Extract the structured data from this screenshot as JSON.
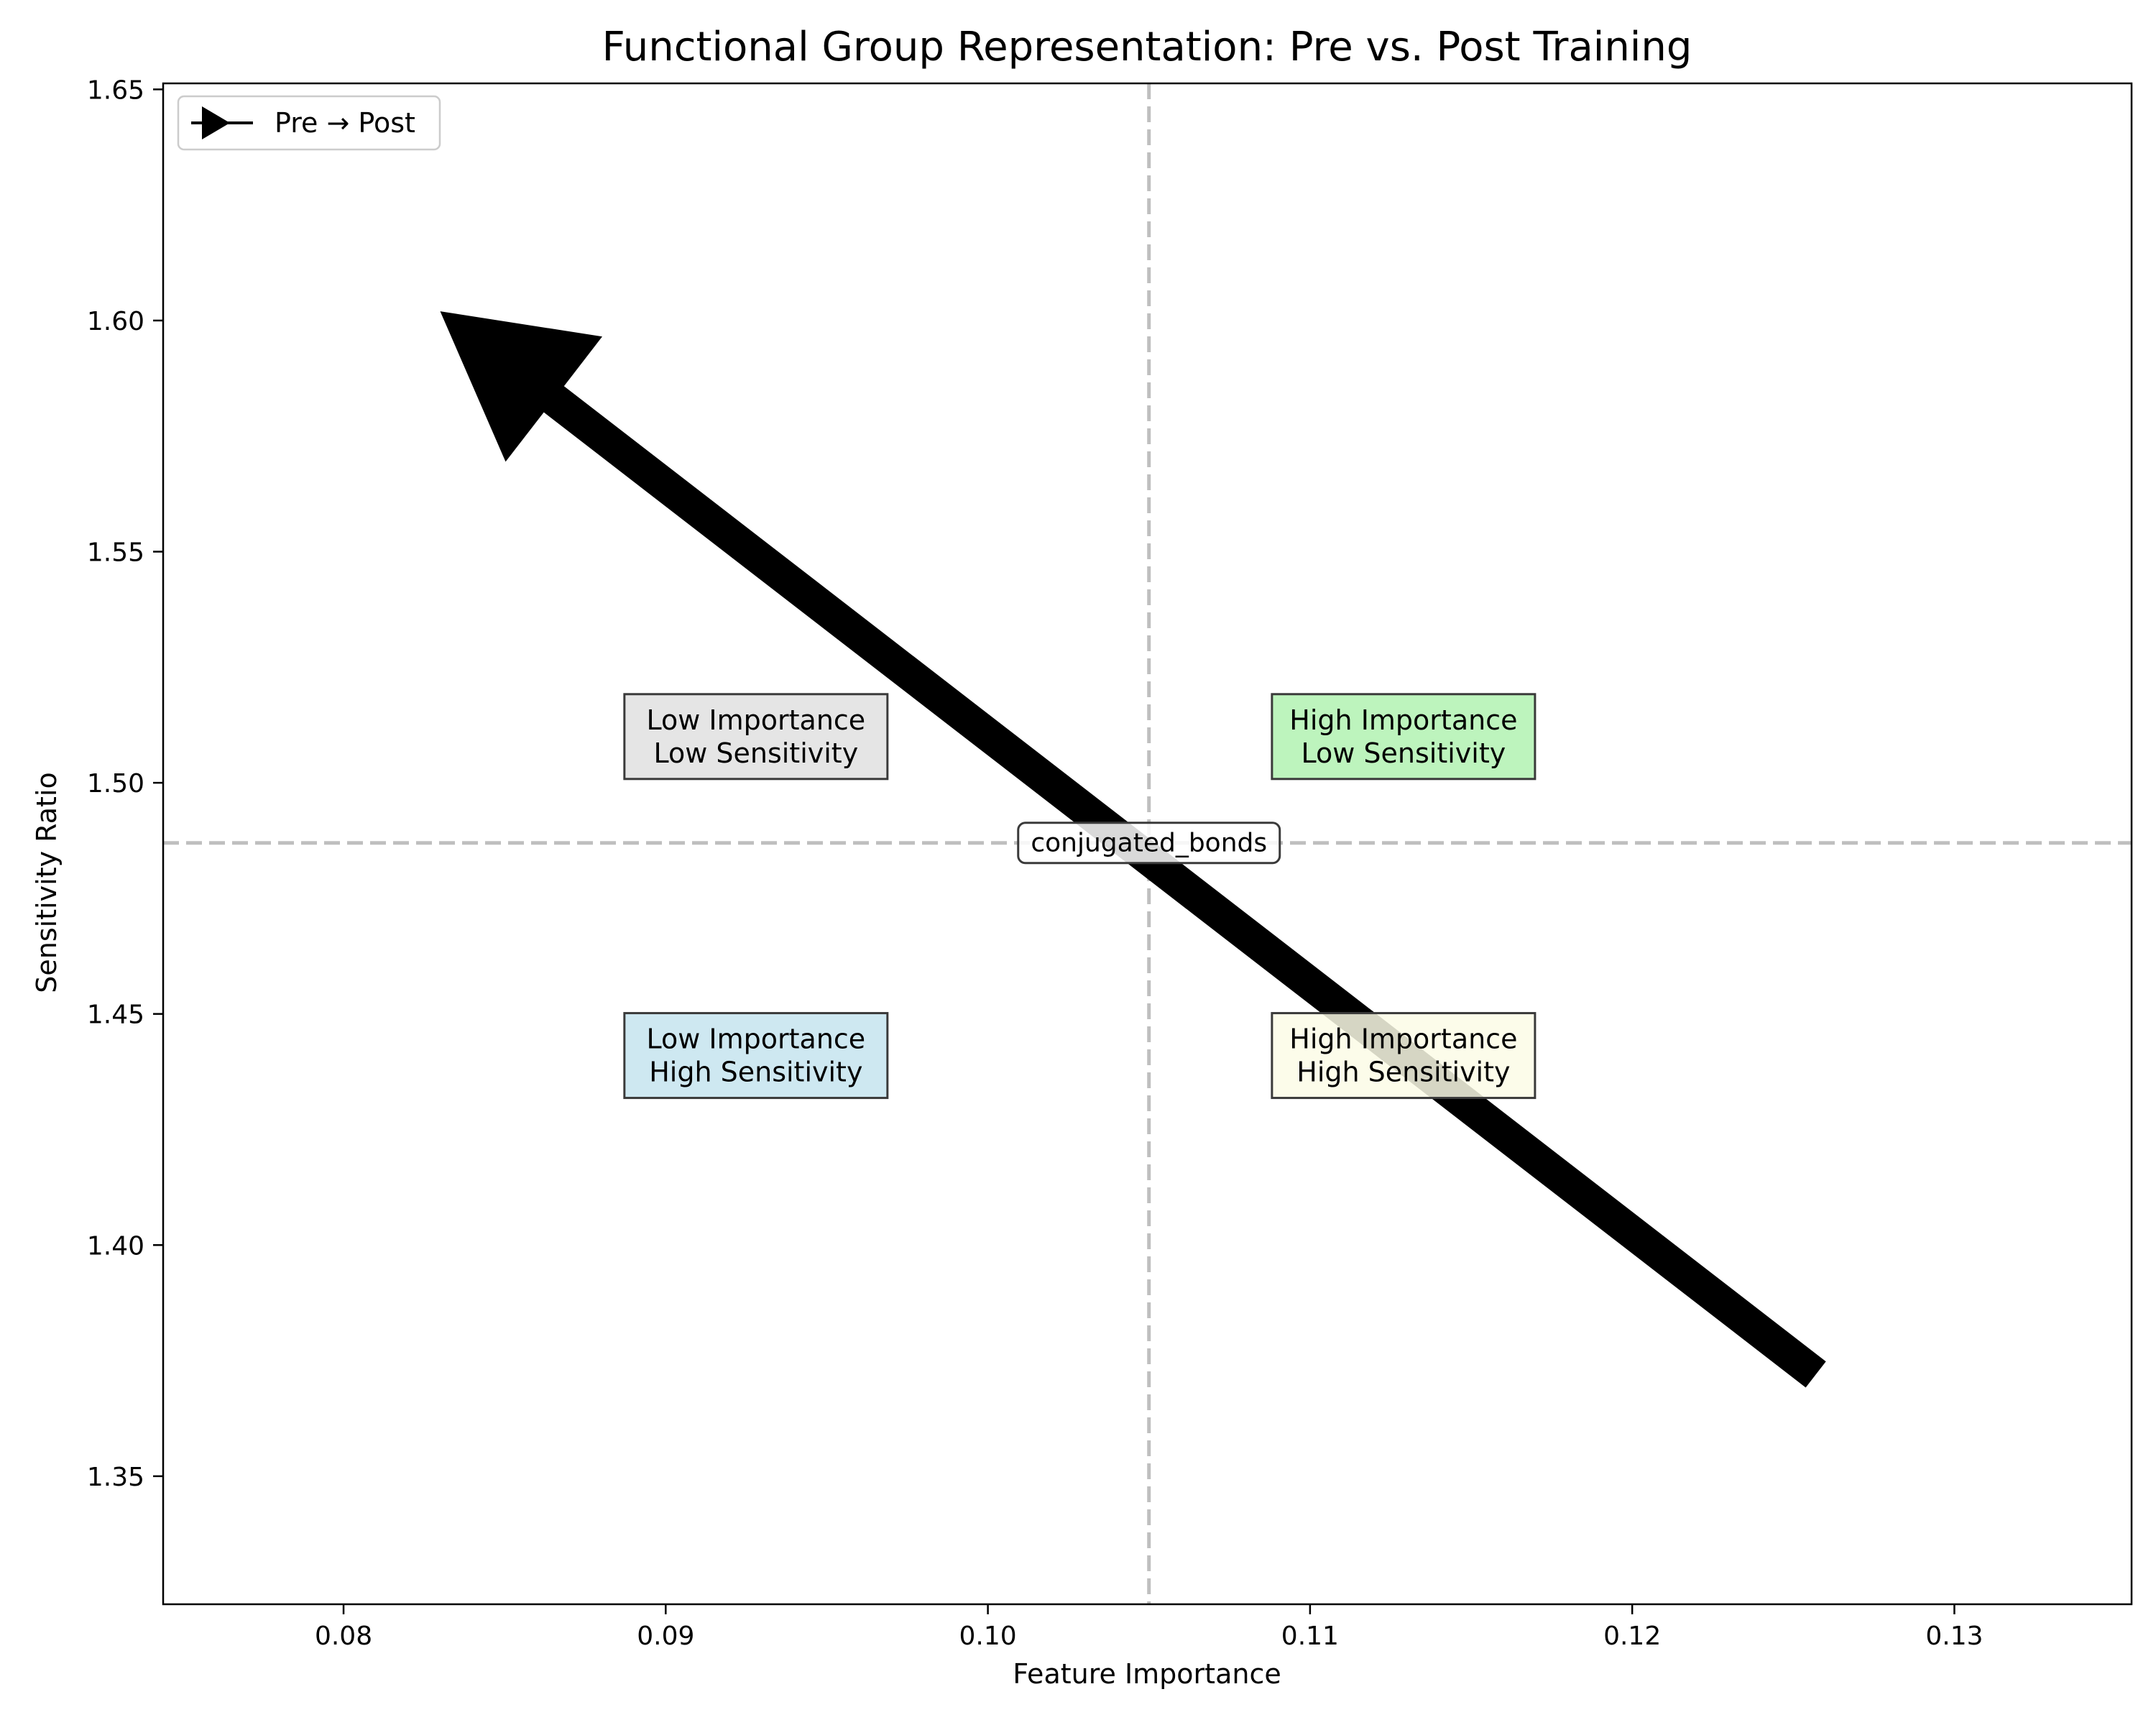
{
  "chart_data": {
    "type": "scatter",
    "title": "Functional Group Representation: Pre vs. Post Training",
    "xlabel": "Feature Importance",
    "ylabel": "Sensitivity Ratio",
    "xlim": [
      0.0744,
      0.1355
    ],
    "ylim": [
      1.3223,
      1.6513
    ],
    "xticks": [
      0.08,
      0.09,
      0.1,
      0.11,
      0.12,
      0.13
    ],
    "xtick_labels": [
      "0.08",
      "0.09",
      "0.10",
      "0.11",
      "0.12",
      "0.13"
    ],
    "yticks": [
      1.35,
      1.4,
      1.45,
      1.5,
      1.55,
      1.6,
      1.65
    ],
    "ytick_labels": [
      "1.35",
      "1.40",
      "1.45",
      "1.50",
      "1.55",
      "1.60",
      "1.65"
    ],
    "grid": false,
    "legend": {
      "position": "top-left",
      "entries": [
        "Pre → Post"
      ]
    },
    "series": [
      {
        "name": "Pre → Post",
        "arrows": [
          {
            "label": "conjugated_bonds",
            "pre": {
              "x": 0.1257,
              "y": 1.372
            },
            "post": {
              "x": 0.083,
              "y": 1.602
            }
          }
        ]
      }
    ],
    "reference_lines": {
      "x": 0.105,
      "y": 1.487
    },
    "quadrant_labels": [
      {
        "lines": [
          "Low Importance",
          "Low Sensitivity"
        ],
        "x": 0.0928,
        "y": 1.51,
        "color": "#e0e0e0"
      },
      {
        "lines": [
          "High Importance",
          "Low Sensitivity"
        ],
        "x": 0.1129,
        "y": 1.51,
        "color": "#b2f2b2"
      },
      {
        "lines": [
          "Low Importance",
          "High Sensitivity"
        ],
        "x": 0.0928,
        "y": 1.441,
        "color": "#c5e4ee"
      },
      {
        "lines": [
          "High Importance",
          "High Sensitivity"
        ],
        "x": 0.1129,
        "y": 1.441,
        "color": "#fbfbe6"
      }
    ],
    "point_labels": [
      {
        "text": "conjugated_bonds",
        "x": 0.105,
        "y": 1.487
      }
    ],
    "colors": {
      "arrow": "#000000",
      "reference_line": "#bfbfbf"
    }
  }
}
